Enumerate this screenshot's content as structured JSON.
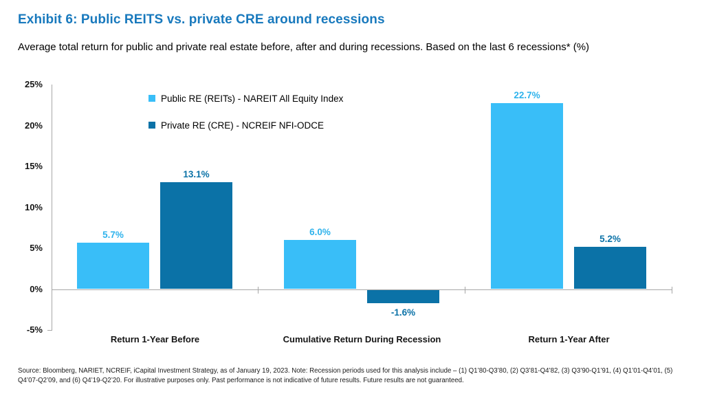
{
  "title": "Exhibit 6: Public REITS vs. private CRE around recessions",
  "subtitle": "Average total return for public and private real estate before, after and during recessions. Based on the last 6 recessions* (%)",
  "colors": {
    "title": "#1879BD",
    "axis": "#A6A6A6",
    "public_series": "#39BEF8",
    "private_series": "#0B72A7"
  },
  "chart_data": {
    "type": "bar",
    "title": "Exhibit 6: Public REITS vs. private CRE around recessions",
    "subtitle": "Average total return for public and private real estate before, after and during recessions. Based on the last 6 recessions* (%)",
    "categories": [
      "Return 1-Year Before",
      "Cumulative Return During Recession",
      "Return 1-Year After"
    ],
    "series": [
      {
        "name": "Public RE (REITs) - NAREIT All Equity Index",
        "color": "#39BEF8",
        "values": [
          5.7,
          6.0,
          22.7
        ],
        "labels": [
          "5.7%",
          "6.0%",
          "22.7%"
        ]
      },
      {
        "name": "Private RE (CRE) - NCREIF NFI-ODCE",
        "color": "#0B72A7",
        "values": [
          13.1,
          -1.6,
          5.2
        ],
        "labels": [
          "13.1%",
          "-1.6%",
          "5.2%"
        ]
      }
    ],
    "xlabel": "",
    "ylabel": "",
    "ylim": [
      -5,
      25
    ],
    "yticks": [
      25,
      20,
      15,
      10,
      5,
      0,
      -5
    ],
    "ytick_labels": [
      "25%",
      "20%",
      "15%",
      "10%",
      "5%",
      "0%",
      "-5%"
    ],
    "grid": false,
    "legend_position": "top-left-inside"
  },
  "footnote": "Source: Bloomberg, NARIET, NCREIF, iCapital Investment Strategy, as of January 19, 2023. Note: Recession periods used for this analysis include – (1) Q1’80-Q3’80, (2) Q3’81-Q4’82, (3) Q3’90-Q1’91, (4) Q1’01-Q4’01, (5) Q4’07-Q2’09, and (6) Q4’19-Q2’20. For illustrative purposes only. Past performance is not indicative of future results. Future results are not guaranteed."
}
